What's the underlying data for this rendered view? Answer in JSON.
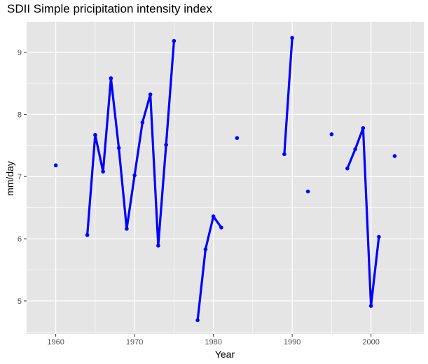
{
  "chart_data": {
    "type": "line",
    "title": "SDII Simple pricipitation intensity index",
    "xlabel": "Year",
    "ylabel": "mm/day",
    "xlim": [
      1956.3,
      2006.7
    ],
    "ylim": [
      4.47,
      9.49
    ],
    "x_ticks": [
      1960,
      1970,
      1980,
      1990,
      2000
    ],
    "x_tick_labels": [
      "1960",
      "1970",
      "1980",
      "1990",
      "2000"
    ],
    "y_ticks": [
      5,
      6,
      7,
      8,
      9
    ],
    "y_tick_labels": [
      "5",
      "6",
      "7",
      "8",
      "9"
    ],
    "x_minor_ticks": [
      1965,
      1975,
      1985,
      1995,
      2005
    ],
    "y_minor_ticks": [
      4.5,
      5.5,
      6.5,
      7.5,
      8.5,
      9.5
    ],
    "grid": true,
    "legend": "none",
    "colors": {
      "series": "#0000ff",
      "panel": "#e5e5e5",
      "grid": "#ffffff"
    },
    "series": [
      {
        "x": [
          1960,
          1961,
          1962,
          1963,
          1964,
          1965,
          1966,
          1967,
          1968,
          1969,
          1970,
          1971,
          1972,
          1973,
          1974,
          1975,
          1976,
          1977,
          1978,
          1979,
          1980,
          1981,
          1982,
          1983,
          1984,
          1985,
          1986,
          1987,
          1988,
          1989,
          1990,
          1991,
          1992,
          1993,
          1994,
          1995,
          1996,
          1997,
          1998,
          1999,
          2000,
          2001,
          2002,
          2003
        ],
        "values": [
          7.18,
          null,
          null,
          null,
          6.06,
          7.67,
          7.08,
          8.58,
          7.46,
          6.16,
          7.02,
          7.87,
          8.32,
          5.89,
          7.51,
          9.18,
          null,
          null,
          4.69,
          5.83,
          6.36,
          6.18,
          null,
          7.62,
          null,
          null,
          null,
          null,
          null,
          7.36,
          9.23,
          null,
          6.76,
          null,
          null,
          7.68,
          null,
          7.13,
          7.44,
          7.78,
          4.92,
          6.03,
          null,
          7.33
        ]
      }
    ]
  }
}
